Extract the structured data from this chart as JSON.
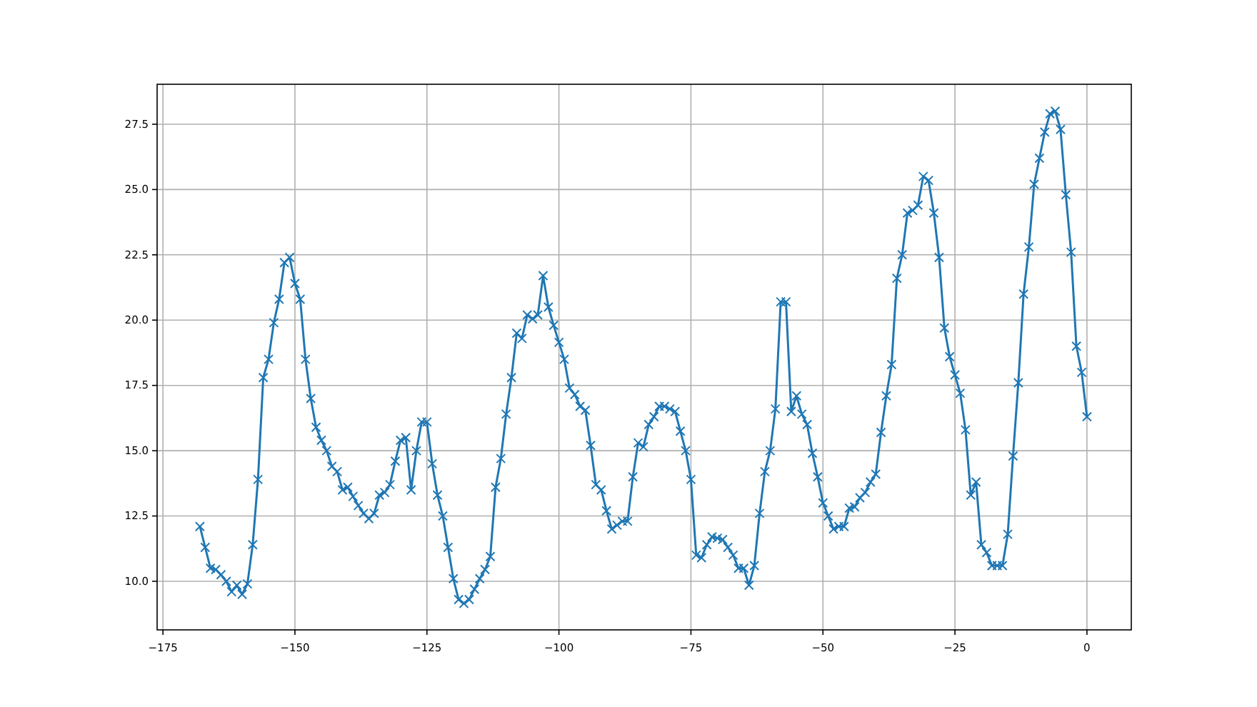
{
  "chart_data": {
    "type": "line",
    "x": [
      -168,
      -167,
      -166,
      -165,
      -164,
      -163,
      -162,
      -161,
      -160,
      -159,
      -158,
      -157,
      -156,
      -155,
      -154,
      -153,
      -152,
      -151,
      -150,
      -149,
      -148,
      -147,
      -146,
      -145,
      -144,
      -143,
      -142,
      -141,
      -140,
      -139,
      -138,
      -137,
      -136,
      -135,
      -134,
      -133,
      -132,
      -131,
      -130,
      -129,
      -128,
      -127,
      -126,
      -125,
      -124,
      -123,
      -122,
      -121,
      -120,
      -119,
      -118,
      -117,
      -116,
      -115,
      -114,
      -113,
      -112,
      -111,
      -110,
      -109,
      -108,
      -107,
      -106,
      -105,
      -104,
      -103,
      -102,
      -101,
      -100,
      -99,
      -98,
      -97,
      -96,
      -95,
      -94,
      -93,
      -92,
      -91,
      -90,
      -89,
      -88,
      -87,
      -86,
      -85,
      -84,
      -83,
      -82,
      -81,
      -80,
      -79,
      -78,
      -77,
      -76,
      -75,
      -74,
      -73,
      -72,
      -71,
      -70,
      -69,
      -68,
      -67,
      -66,
      -65,
      -64,
      -63,
      -62,
      -61,
      -60,
      -59,
      -58,
      -57,
      -56,
      -55,
      -54,
      -53,
      -52,
      -51,
      -50,
      -49,
      -48,
      -47,
      -46,
      -45,
      -44,
      -43,
      -42,
      -41,
      -40,
      -39,
      -38,
      -37,
      -36,
      -35,
      -34,
      -33,
      -32,
      -31,
      -30,
      -29,
      -28,
      -27,
      -26,
      -25,
      -24,
      -23,
      -22,
      -21,
      -20,
      -19,
      -18,
      -17,
      -16,
      -15,
      -14,
      -13,
      -12,
      -11,
      -10,
      -9,
      -8,
      -7,
      -6,
      -5,
      -4,
      -3,
      -2,
      -1,
      0
    ],
    "series": [
      {
        "color": "#1f77b4",
        "values": [
          12.1,
          11.3,
          10.5,
          10.45,
          10.25,
          10.0,
          9.6,
          9.85,
          9.5,
          9.9,
          11.4,
          13.9,
          17.8,
          18.5,
          19.9,
          20.8,
          22.2,
          22.4,
          21.4,
          20.8,
          18.5,
          17.0,
          15.9,
          15.4,
          15.0,
          14.4,
          14.2,
          13.5,
          13.6,
          13.25,
          12.9,
          12.6,
          12.4,
          12.6,
          13.3,
          13.4,
          13.7,
          14.6,
          15.4,
          15.5,
          13.5,
          15.0,
          16.1,
          16.1,
          14.5,
          13.3,
          12.5,
          11.3,
          10.1,
          9.3,
          9.15,
          9.3,
          9.7,
          10.1,
          10.45,
          10.95,
          13.6,
          14.7,
          16.4,
          17.8,
          19.5,
          19.3,
          20.2,
          20.05,
          20.2,
          21.7,
          20.5,
          19.8,
          19.15,
          18.5,
          17.4,
          17.15,
          16.7,
          16.55,
          15.2,
          13.7,
          13.5,
          12.7,
          12.0,
          12.15,
          12.3,
          12.3,
          14.0,
          15.3,
          15.15,
          16.0,
          16.3,
          16.7,
          16.7,
          16.6,
          16.5,
          15.75,
          15.0,
          13.9,
          11.0,
          10.9,
          11.4,
          11.7,
          11.65,
          11.6,
          11.3,
          11.0,
          10.5,
          10.5,
          9.85,
          10.6,
          12.6,
          14.2,
          15.0,
          16.6,
          20.7,
          20.7,
          16.5,
          17.1,
          16.4,
          16.0,
          14.9,
          14.0,
          13.0,
          12.5,
          12.0,
          12.1,
          12.1,
          12.8,
          12.85,
          13.2,
          13.4,
          13.8,
          14.1,
          15.7,
          17.1,
          18.3,
          21.6,
          22.5,
          24.1,
          24.2,
          24.4,
          25.5,
          25.35,
          24.1,
          22.4,
          19.7,
          18.6,
          17.9,
          17.2,
          15.8,
          13.3,
          13.8,
          11.4,
          11.1,
          10.6,
          10.6,
          10.6,
          11.8,
          14.8,
          17.6,
          21.0,
          22.8,
          25.2,
          26.2,
          27.2,
          27.9,
          28.0,
          27.3,
          24.8,
          22.6,
          19.0,
          18.0,
          16.3
        ]
      }
    ],
    "xlim": [
      -176.1,
      8.4
    ],
    "ylim": [
      8.14,
      29.03
    ],
    "xticks": [
      {
        "value": -175,
        "label": "−175"
      },
      {
        "value": -150,
        "label": "−150"
      },
      {
        "value": -125,
        "label": "−125"
      },
      {
        "value": -100,
        "label": "−100"
      },
      {
        "value": -75,
        "label": "−75"
      },
      {
        "value": -50,
        "label": "−50"
      },
      {
        "value": -25,
        "label": "−25"
      },
      0
    ],
    "yticks": [
      {
        "value": 10,
        "label": "10.0"
      },
      12.5,
      {
        "value": 15,
        "label": "15.0"
      },
      17.5,
      {
        "value": 20,
        "label": "20.0"
      },
      22.5,
      {
        "value": 25,
        "label": "25.0"
      },
      27.5
    ],
    "grid": true,
    "marker": "cross",
    "line_style": "solid"
  }
}
